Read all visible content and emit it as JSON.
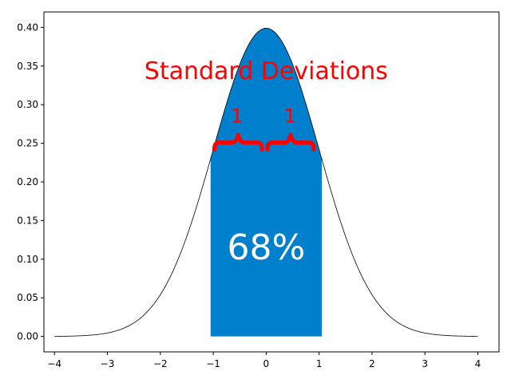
{
  "chart_data": {
    "type": "area",
    "title": "",
    "xlabel": "",
    "ylabel": "",
    "xlim": [
      -4.2,
      4.4
    ],
    "ylim": [
      -0.02,
      0.42
    ],
    "x_ticks": [
      -4,
      -3,
      -2,
      -1,
      0,
      1,
      2,
      3,
      4
    ],
    "x_tick_labels": [
      "−4",
      "−3",
      "−2",
      "−1",
      "0",
      "1",
      "2",
      "3",
      "4"
    ],
    "y_ticks": [
      0.0,
      0.05,
      0.1,
      0.15,
      0.2,
      0.25,
      0.3,
      0.35,
      0.4
    ],
    "y_tick_labels": [
      "0.00",
      "0.05",
      "0.10",
      "0.15",
      "0.20",
      "0.25",
      "0.30",
      "0.35",
      "0.40"
    ],
    "grid": false,
    "curve": {
      "function": "normal_pdf",
      "mean": 0,
      "std": 1,
      "x_range": [
        -4,
        4
      ],
      "line_color": "#000000"
    },
    "shaded_region": {
      "x_range": [
        -1.05,
        1.05
      ],
      "color": "#0080CC"
    },
    "annotations": {
      "heading": "Standard Deviations",
      "heading_color": "#FF0000",
      "left_brace_label": "1",
      "right_brace_label": "1",
      "brace_color": "#FF0000",
      "percent_label": "68%",
      "percent_color": "#FFFFFF"
    }
  }
}
